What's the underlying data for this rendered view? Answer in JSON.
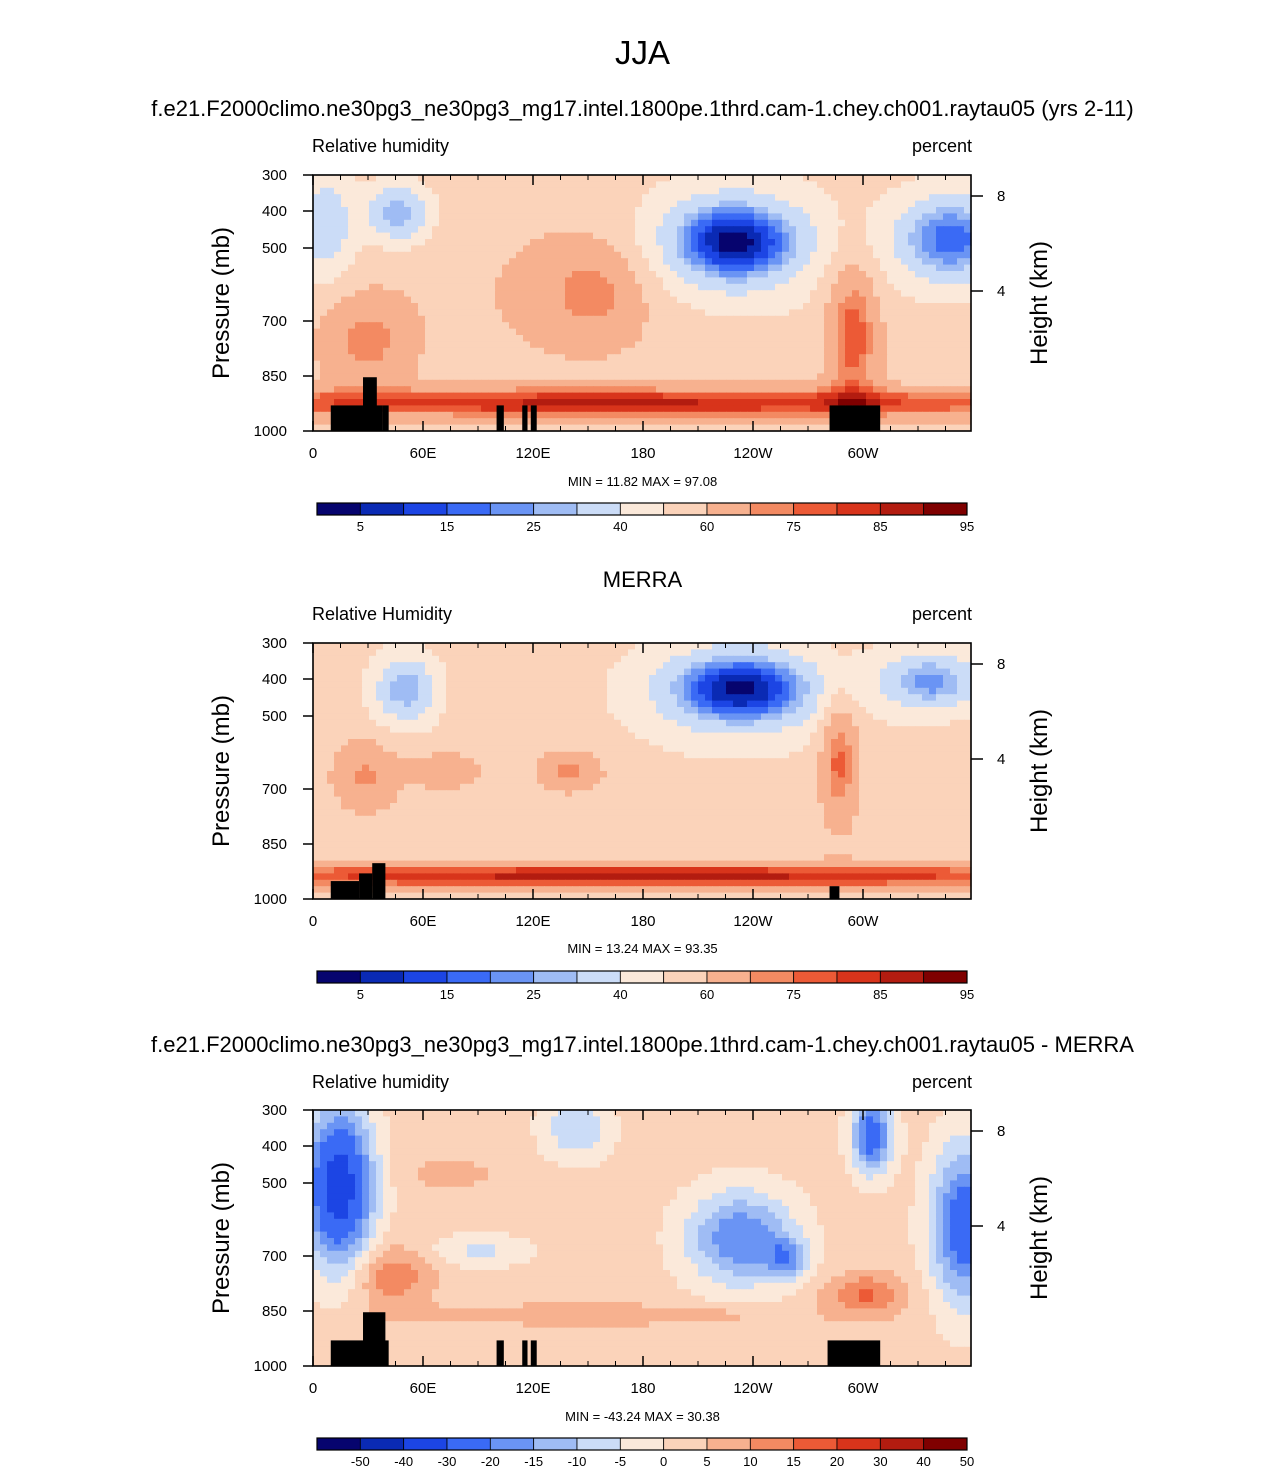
{
  "season_title": "JJA",
  "chart_data": [
    {
      "type": "heatmap",
      "title": "f.e21.F2000climo.ne30pg3_ne30pg3_mg17.intel.1800pe.1thrd.cam-1.chey.ch001.raytau05 (yrs 2-11)",
      "left_label": "Relative humidity",
      "right_label": "percent",
      "ylabel": "Pressure (mb)",
      "y2label": "Height (km)",
      "x_ticks": [
        "0",
        "60E",
        "120E",
        "180",
        "120W",
        "60W"
      ],
      "y_ticks": [
        "300",
        "400",
        "500",
        "700",
        "850",
        "1000"
      ],
      "y2_ticks": [
        "8",
        "4"
      ],
      "stats": "MIN =  11.82  MAX =  97.08",
      "min": 11.82,
      "max": 97.08,
      "colorbar_labels": [
        "5",
        "15",
        "25",
        "40",
        "60",
        "75",
        "85",
        "95"
      ],
      "colors": [
        "#06046e",
        "#0a2ab4",
        "#1c45e4",
        "#3a6af5",
        "#6a94f4",
        "#9fbcf4",
        "#cbdcf7",
        "#fbe9da",
        "#fbd3ba",
        "#f7b18f",
        "#f38a62",
        "#ec5a36",
        "#d8341b",
        "#b31c10",
        "#7f0000"
      ],
      "levels": [
        0,
        5,
        10,
        15,
        20,
        25,
        30,
        40,
        50,
        60,
        70,
        75,
        80,
        85,
        90,
        95,
        100
      ]
    },
    {
      "type": "heatmap",
      "title": "MERRA",
      "left_label": "Relative Humidity",
      "right_label": "percent",
      "ylabel": "Pressure (mb)",
      "y2label": "Height (km)",
      "x_ticks": [
        "0",
        "60E",
        "120E",
        "180",
        "120W",
        "60W"
      ],
      "y_ticks": [
        "300",
        "400",
        "500",
        "700",
        "850",
        "1000"
      ],
      "y2_ticks": [
        "8",
        "4"
      ],
      "stats": "MIN =  13.24  MAX =  93.35",
      "min": 13.24,
      "max": 93.35,
      "colorbar_labels": [
        "5",
        "15",
        "25",
        "40",
        "60",
        "75",
        "85",
        "95"
      ],
      "colors": [
        "#06046e",
        "#0a2ab4",
        "#1c45e4",
        "#3a6af5",
        "#6a94f4",
        "#9fbcf4",
        "#cbdcf7",
        "#fbe9da",
        "#fbd3ba",
        "#f7b18f",
        "#f38a62",
        "#ec5a36",
        "#d8341b",
        "#b31c10",
        "#7f0000"
      ]
    },
    {
      "type": "heatmap",
      "title": "f.e21.F2000climo.ne30pg3_ne30pg3_mg17.intel.1800pe.1thrd.cam-1.chey.ch001.raytau05 - MERRA",
      "left_label": "Relative humidity",
      "right_label": "percent",
      "ylabel": "Pressure (mb)",
      "y2label": "Height (km)",
      "x_ticks": [
        "0",
        "60E",
        "120E",
        "180",
        "120W",
        "60W"
      ],
      "y_ticks": [
        "300",
        "400",
        "500",
        "700",
        "850",
        "1000"
      ],
      "y2_ticks": [
        "8",
        "4"
      ],
      "stats": "MIN = -43.24  MAX =  30.38",
      "min": -43.24,
      "max": 30.38,
      "colorbar_labels": [
        "-50",
        "-40",
        "-30",
        "-20",
        "-15",
        "-10",
        "-5",
        "0",
        "5",
        "10",
        "15",
        "20",
        "30",
        "40",
        "50"
      ],
      "colors": [
        "#06046e",
        "#0a2ab4",
        "#1c45e4",
        "#3a6af5",
        "#6a94f4",
        "#9fbcf4",
        "#cbdcf7",
        "#fbe9da",
        "#fbd3ba",
        "#f7b18f",
        "#f38a62",
        "#ec5a36",
        "#d8341b",
        "#b31c10",
        "#7f0000"
      ]
    }
  ]
}
